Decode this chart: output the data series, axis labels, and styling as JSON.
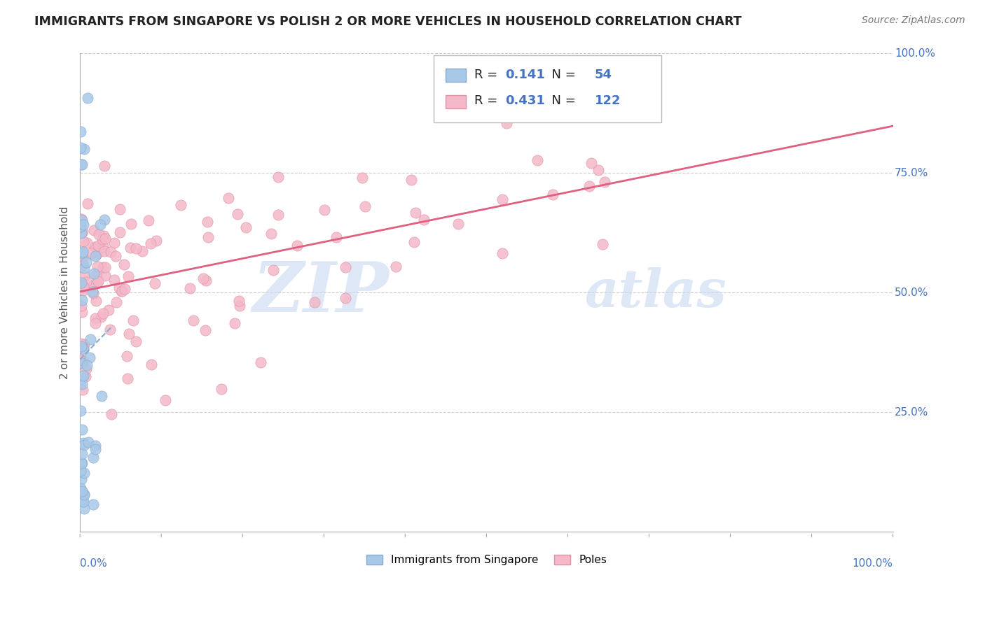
{
  "title": "IMMIGRANTS FROM SINGAPORE VS POLISH 2 OR MORE VEHICLES IN HOUSEHOLD CORRELATION CHART",
  "source": "Source: ZipAtlas.com",
  "ylabel": "2 or more Vehicles in Household",
  "R1": 0.141,
  "N1": 54,
  "R2": 0.431,
  "N2": 122,
  "color_blue": "#a8c8e8",
  "color_blue_edge": "#88aacc",
  "color_blue_line": "#88aacc",
  "color_pink": "#f4b8c8",
  "color_pink_edge": "#e090a8",
  "color_pink_line": "#e06080",
  "color_text_blue": "#4472c4",
  "color_grid": "#cccccc",
  "watermark_zip_color": "#c0d0e8",
  "watermark_atlas_color": "#c0d0e8",
  "legend_label1": "Immigrants from Singapore",
  "legend_label2": "Poles",
  "xlim": [
    0.0,
    1.0
  ],
  "ylim": [
    0.0,
    1.0
  ],
  "ytick_vals": [
    0.25,
    0.5,
    0.75,
    1.0
  ],
  "ytick_labels": [
    "25.0%",
    "50.0%",
    "75.0%",
    "100.0%"
  ]
}
